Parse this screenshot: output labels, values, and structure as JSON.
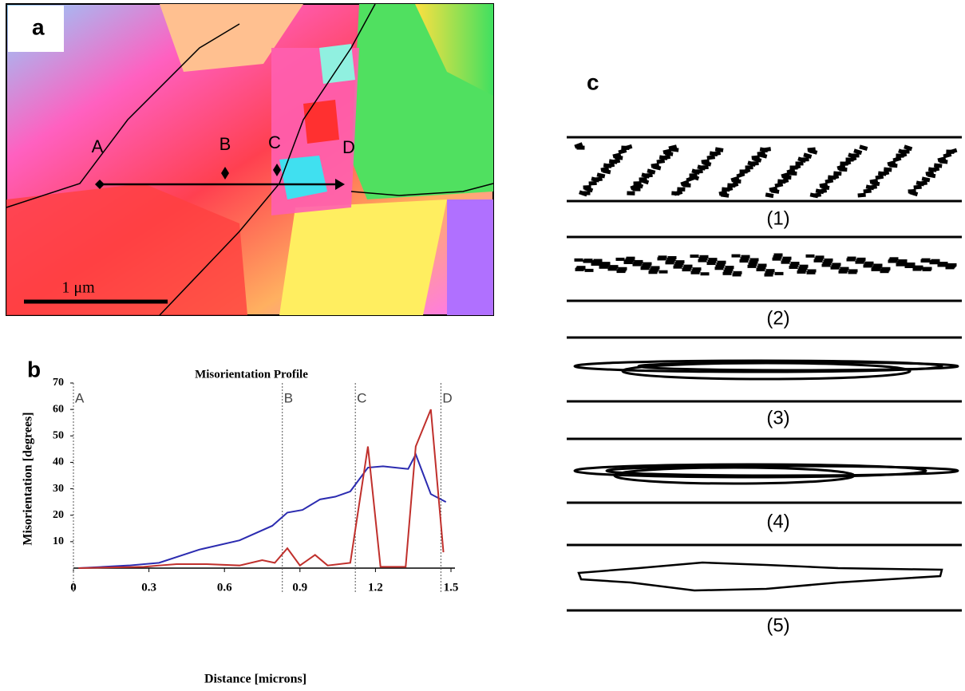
{
  "panel_a": {
    "label": "a",
    "points": [
      "A",
      "B",
      "C",
      "D"
    ],
    "scale_bar": "1 μm"
  },
  "panel_b_label": "b",
  "chart_data": {
    "type": "line",
    "title": "Misorientation Profile",
    "x_label": "Distance [microns]",
    "y_label": "Misorientation [degrees]",
    "xlim": [
      0,
      1.5
    ],
    "ylim": [
      0,
      70
    ],
    "xticks": [
      0,
      0.3,
      0.6,
      0.9,
      1.2,
      1.5
    ],
    "yticks": [
      10,
      20,
      30,
      40,
      50,
      60,
      70
    ],
    "annotations": [
      {
        "label": "A",
        "x": 0
      },
      {
        "label": "B",
        "x": 0.83
      },
      {
        "label": "C",
        "x": 1.12
      },
      {
        "label": "D",
        "x": 1.46
      }
    ],
    "series": [
      {
        "color": "#2b2bb0",
        "x": [
          0.02,
          0.22,
          0.34,
          0.5,
          0.66,
          0.79,
          0.85,
          0.91,
          0.98,
          1.04,
          1.1,
          1.17,
          1.23,
          1.33,
          1.36,
          1.42,
          1.48
        ],
        "values": [
          0,
          1,
          2,
          7,
          10.5,
          16,
          21,
          22,
          26,
          27,
          29,
          38,
          38.5,
          37.5,
          43,
          28,
          25
        ]
      },
      {
        "color": "#c0302c",
        "x": [
          0.02,
          0.28,
          0.34,
          0.41,
          0.53,
          0.66,
          0.75,
          0.8,
          0.85,
          0.9,
          0.96,
          1.01,
          1.1,
          1.17,
          1.22,
          1.32,
          1.36,
          1.42,
          1.47
        ],
        "values": [
          0,
          0.5,
          1,
          1.5,
          1.5,
          1,
          3,
          2,
          7.5,
          1,
          5,
          1,
          2,
          46,
          0.5,
          0.5,
          46,
          60,
          6
        ]
      }
    ]
  },
  "panel_c": {
    "label": "c",
    "items": [
      "(1)",
      "(2)",
      "(3)",
      "(4)",
      "(5)"
    ]
  }
}
